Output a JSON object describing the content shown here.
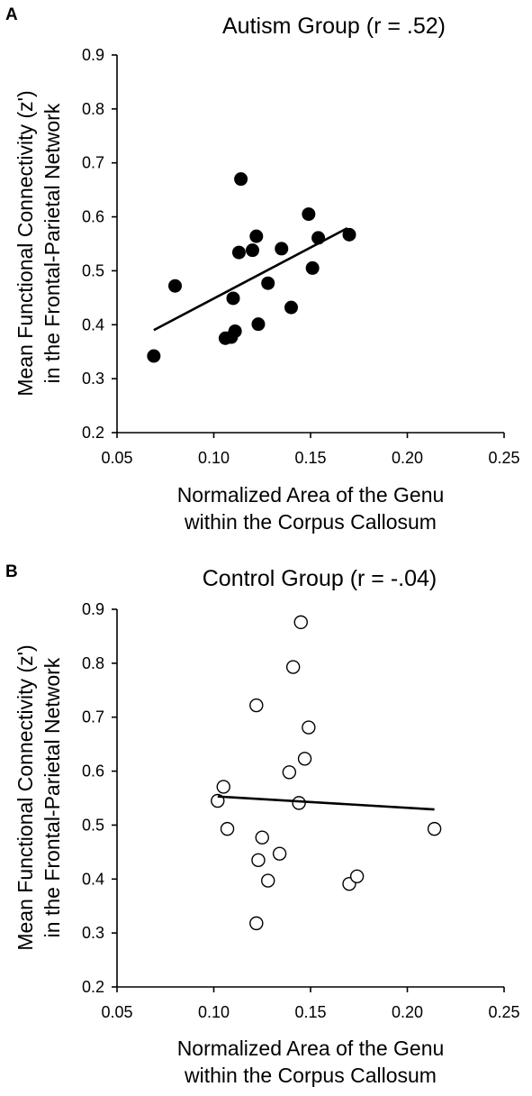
{
  "chart_data": [
    {
      "type": "scatter",
      "panel": "A",
      "title": "Autism Group (r = .52)",
      "xlabel": [
        "Normalized Area of the Genu",
        "within the Corpus Callosum"
      ],
      "ylabel": [
        "Mean Functional Connectivity (z')",
        "in the Frontal-Parietal Network"
      ],
      "xlim": [
        0.05,
        0.25
      ],
      "ylim": [
        0.2,
        0.9
      ],
      "x_ticks": [
        "0.05",
        "0.10",
        "0.15",
        "0.20",
        "0.25"
      ],
      "y_ticks": [
        "0.2",
        "0.3",
        "0.4",
        "0.5",
        "0.6",
        "0.7",
        "0.8",
        "0.9"
      ],
      "marker": "filled",
      "points": [
        {
          "x": 0.069,
          "y": 0.342
        },
        {
          "x": 0.08,
          "y": 0.472
        },
        {
          "x": 0.106,
          "y": 0.375
        },
        {
          "x": 0.109,
          "y": 0.377
        },
        {
          "x": 0.11,
          "y": 0.449
        },
        {
          "x": 0.111,
          "y": 0.388
        },
        {
          "x": 0.113,
          "y": 0.534
        },
        {
          "x": 0.114,
          "y": 0.67
        },
        {
          "x": 0.12,
          "y": 0.538
        },
        {
          "x": 0.122,
          "y": 0.564
        },
        {
          "x": 0.123,
          "y": 0.401
        },
        {
          "x": 0.128,
          "y": 0.477
        },
        {
          "x": 0.135,
          "y": 0.541
        },
        {
          "x": 0.14,
          "y": 0.432
        },
        {
          "x": 0.149,
          "y": 0.605
        },
        {
          "x": 0.151,
          "y": 0.505
        },
        {
          "x": 0.154,
          "y": 0.561
        },
        {
          "x": 0.17,
          "y": 0.567
        }
      ],
      "trendline": [
        {
          "x": 0.069,
          "y": 0.39
        },
        {
          "x": 0.169,
          "y": 0.579
        }
      ]
    },
    {
      "type": "scatter",
      "panel": "B",
      "title": "Control Group (r = -.04)",
      "xlabel": [
        "Normalized Area of the Genu",
        "within the Corpus Callosum"
      ],
      "ylabel": [
        "Mean Functional Connectivity (z')",
        "in the Frontal-Parietal Network"
      ],
      "xlim": [
        0.05,
        0.25
      ],
      "ylim": [
        0.2,
        0.9
      ],
      "x_ticks": [
        "0.05",
        "0.10",
        "0.15",
        "0.20",
        "0.25"
      ],
      "y_ticks": [
        "0.2",
        "0.3",
        "0.4",
        "0.5",
        "0.6",
        "0.7",
        "0.8",
        "0.9"
      ],
      "marker": "open",
      "points": [
        {
          "x": 0.102,
          "y": 0.545
        },
        {
          "x": 0.105,
          "y": 0.571
        },
        {
          "x": 0.107,
          "y": 0.493
        },
        {
          "x": 0.122,
          "y": 0.722
        },
        {
          "x": 0.122,
          "y": 0.318
        },
        {
          "x": 0.123,
          "y": 0.435
        },
        {
          "x": 0.125,
          "y": 0.477
        },
        {
          "x": 0.128,
          "y": 0.397
        },
        {
          "x": 0.134,
          "y": 0.447
        },
        {
          "x": 0.139,
          "y": 0.598
        },
        {
          "x": 0.141,
          "y": 0.793
        },
        {
          "x": 0.144,
          "y": 0.541
        },
        {
          "x": 0.145,
          "y": 0.876
        },
        {
          "x": 0.147,
          "y": 0.623
        },
        {
          "x": 0.149,
          "y": 0.681
        },
        {
          "x": 0.17,
          "y": 0.391
        },
        {
          "x": 0.174,
          "y": 0.405
        },
        {
          "x": 0.214,
          "y": 0.493
        }
      ],
      "trendline": [
        {
          "x": 0.102,
          "y": 0.553
        },
        {
          "x": 0.214,
          "y": 0.529
        }
      ]
    }
  ]
}
